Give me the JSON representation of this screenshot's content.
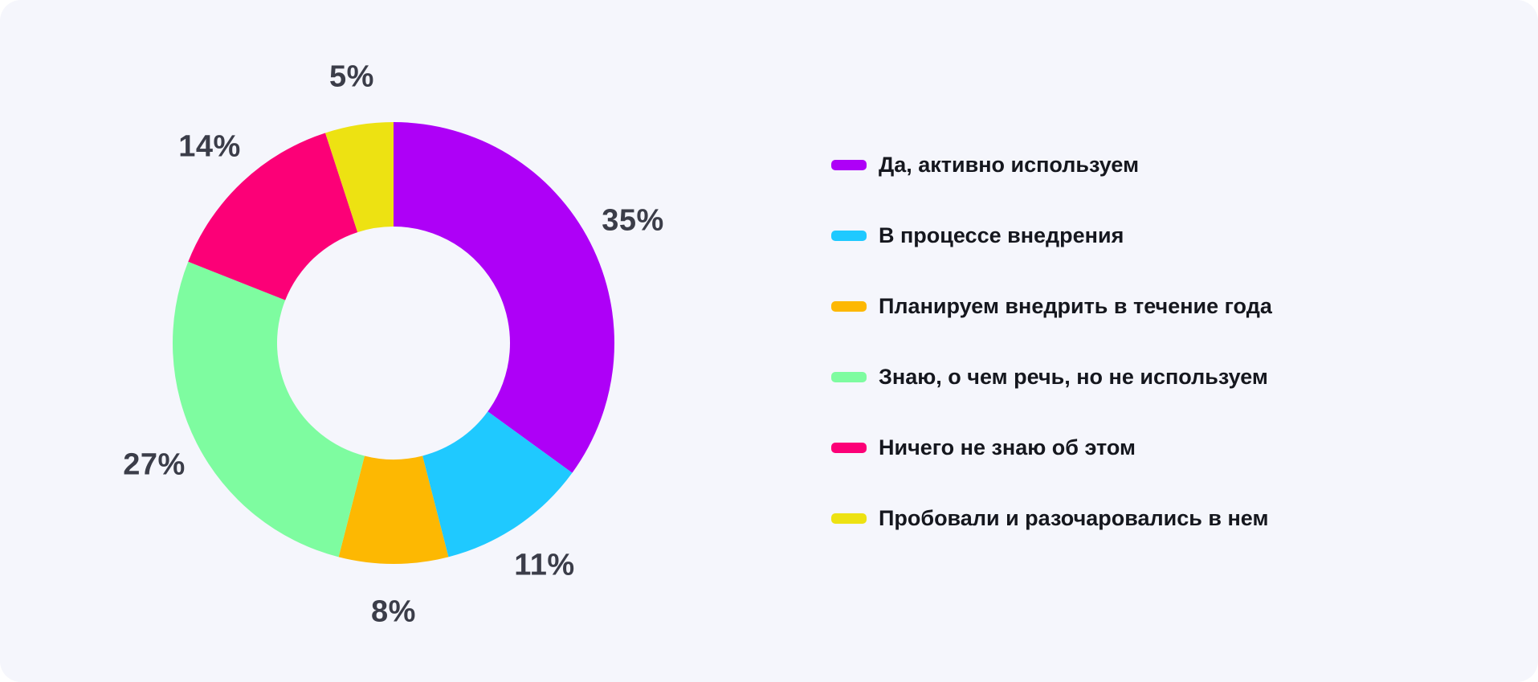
{
  "chart_data": {
    "type": "pie",
    "subtype": "donut",
    "title": "",
    "direction": "clockwise",
    "start_angle_deg": 0,
    "unit": "%",
    "legend_position": "right",
    "series": [
      {
        "label": "Да, активно используем",
        "value": 35,
        "display_value": "35%",
        "color": "#AE00F7"
      },
      {
        "label": "В процессе внедрения",
        "value": 11,
        "display_value": "11%",
        "color": "#1FC9FF"
      },
      {
        "label": "Планируем внедрить в течение года",
        "value": 8,
        "display_value": "8%",
        "color": "#FDB802"
      },
      {
        "label": "Знаю, о чем речь, но не используем",
        "value": 27,
        "display_value": "27%",
        "color": "#7EFCA0"
      },
      {
        "label": "Ничего не знаю об этом",
        "value": 14,
        "display_value": "14%",
        "color": "#FC0077"
      },
      {
        "label": "Пробовали и разочаровались в нем",
        "value": 5,
        "display_value": "5%",
        "color": "#EDE212"
      }
    ],
    "colors": {
      "background": "#F5F6FC",
      "value_label_text": "#3B3D49",
      "legend_text": "#15171E"
    }
  }
}
